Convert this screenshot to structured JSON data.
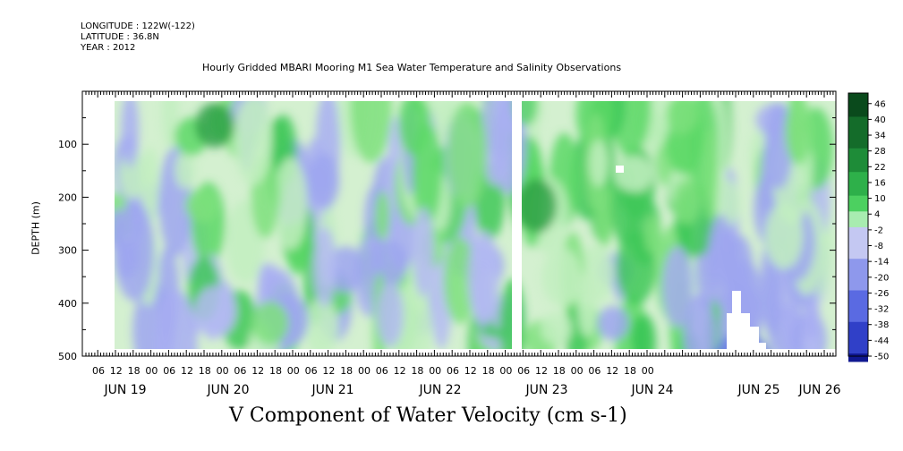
{
  "header": {
    "longitude": "LONGITUDE : 122W(-122)",
    "latitude": "LATITUDE : 36.8N",
    "year": "YEAR : 2012"
  },
  "title": "Hourly Gridded MBARI Mooring M1 Sea Water Temperature and Salinity Observations",
  "variable_title": "V Component of Water Velocity (cm s-1)",
  "chart_data": {
    "type": "heatmap",
    "title": "Hourly Gridded MBARI Mooring M1 Sea Water Temperature and Salinity Observations",
    "xlabel": "",
    "ylabel": "DEPTH (m)",
    "ylim": [
      500,
      0
    ],
    "y_ticks": [
      100,
      200,
      300,
      400,
      500
    ],
    "x_hour_labels": [
      "06",
      "12",
      "18",
      "00",
      "06",
      "12",
      "18",
      "00",
      "06",
      "12",
      "18",
      "00",
      "06",
      "12",
      "18",
      "00",
      "06",
      "12",
      "18",
      "00",
      "06",
      "12",
      "18",
      "00",
      "06",
      "12",
      "18",
      "00",
      "06",
      "12",
      "18",
      "00"
    ],
    "x_day_labels": [
      "JUN 19",
      "JUN 20",
      "JUN 21",
      "JUN 22",
      "JUN 23",
      "JUN 24",
      "JUN 25",
      "JUN 26"
    ],
    "colorbar": {
      "labels": [
        "46",
        "40",
        "34",
        "28",
        "22",
        "16",
        "10",
        "4",
        "-2",
        "-8",
        "-14",
        "-20",
        "-26",
        "-32",
        "-38",
        "-44",
        "-50"
      ],
      "range": [
        -50,
        50
      ]
    },
    "gaps": [
      "missing data column near 00 JUN 23"
    ]
  },
  "colors": {
    "negative": "#a0a8f0",
    "near_zero": "#d4f0d0",
    "positive": "#40d060",
    "strong_positive": "#20a040"
  }
}
